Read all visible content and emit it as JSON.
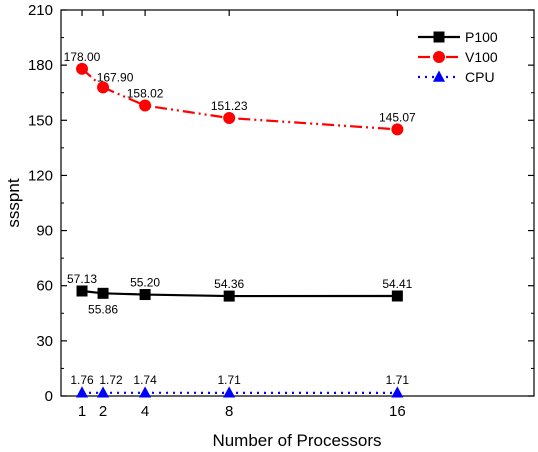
{
  "chart_data": {
    "type": "line",
    "title": "",
    "xlabel": "Number of Processors",
    "ylabel": "ssspnt",
    "x": [
      1,
      2,
      4,
      8,
      16
    ],
    "x_ticks": [
      "1",
      "2",
      "4",
      "8",
      "16"
    ],
    "xlim": [
      0,
      22.5
    ],
    "ylim": [
      0,
      210
    ],
    "y_ticks": [
      "0",
      "30",
      "60",
      "90",
      "120",
      "150",
      "180",
      "210"
    ],
    "grid": false,
    "legend_position": "top-right",
    "series": [
      {
        "name": "P100",
        "values": [
          57.13,
          55.86,
          55.2,
          54.36,
          54.41
        ],
        "labels": [
          "57.13",
          "55.86",
          "55.20",
          "54.36",
          "54.41"
        ],
        "color": "#000000",
        "line_style": "solid",
        "marker": "square"
      },
      {
        "name": "V100",
        "values": [
          178.0,
          167.9,
          158.02,
          151.23,
          145.07
        ],
        "labels": [
          "178.00",
          "167.90",
          "158.02",
          "151.23",
          "145.07"
        ],
        "color": "#ff0000",
        "line_style": "dash-dot-dot",
        "marker": "circle"
      },
      {
        "name": "CPU",
        "values": [
          1.76,
          1.72,
          1.74,
          1.71,
          1.71
        ],
        "labels": [
          "1.76",
          "1.72",
          "1.74",
          "1.71",
          "1.71"
        ],
        "color": "#0000ff",
        "line_style": "dotted",
        "marker": "triangle"
      }
    ]
  }
}
